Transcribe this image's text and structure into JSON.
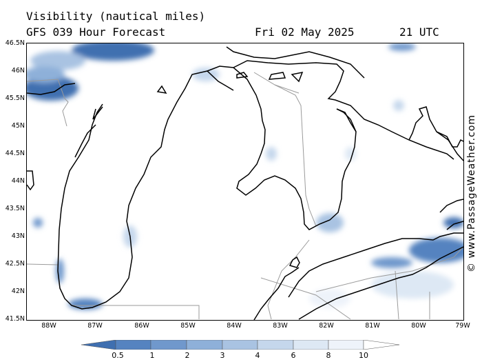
{
  "header": {
    "line1": "Visibility (nautical miles)",
    "model": "GFS 039 Hour Forecast",
    "date": "Fri 02 May 2025",
    "time": "21 UTC"
  },
  "latitude_labels": [
    "46.5N",
    "46N",
    "45.5N",
    "45N",
    "44.5N",
    "44N",
    "43.5N",
    "43N",
    "42.5N",
    "42N",
    "41.5N"
  ],
  "longitude_labels": [
    "88W",
    "87W",
    "86W",
    "85W",
    "84W",
    "83W",
    "82W",
    "81W",
    "80W",
    "79W"
  ],
  "credit": "© www.PassageWeather.com",
  "legend": {
    "labels": [
      "0.5",
      "1",
      "2",
      "3",
      "4",
      "6",
      "8",
      "10"
    ],
    "colors": [
      "#3f6fb0",
      "#5583c0",
      "#7098cc",
      "#8eb0d9",
      "#a9c3e2",
      "#c5d7ec",
      "#dde8f4",
      "#eef3fa",
      "#ffffff"
    ]
  },
  "colors": {
    "land_outline": "#000000",
    "boundaries": "#9a9a9a"
  }
}
